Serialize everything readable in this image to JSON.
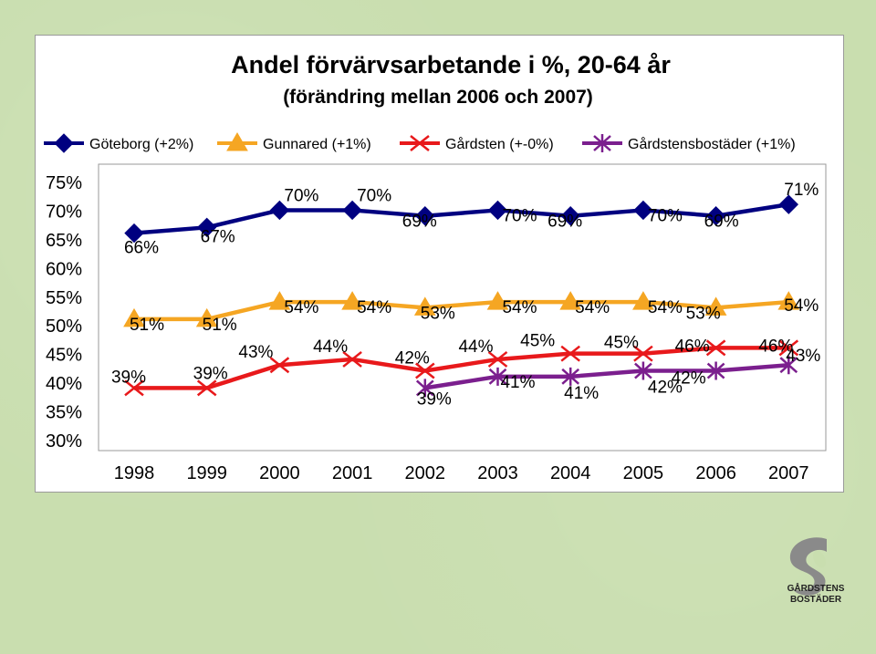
{
  "chart_data": {
    "type": "line",
    "title": "Andel förvärvsarbetande i %, 20-64 år",
    "subtitle": "(förändring mellan 2006 och 2007)",
    "xlabel": "",
    "ylabel": "",
    "categories": [
      "1998",
      "1999",
      "2000",
      "2001",
      "2002",
      "2003",
      "2004",
      "2005",
      "2006",
      "2007"
    ],
    "ylim": [
      30,
      75
    ],
    "y_ticks": [
      "30%",
      "35%",
      "40%",
      "45%",
      "50%",
      "55%",
      "60%",
      "65%",
      "70%",
      "75%"
    ],
    "grid": false,
    "legend_position": "top",
    "series": [
      {
        "name": "Göteborg (+2%)",
        "color": "#000080",
        "marker": "diamond",
        "values": [
          66,
          67,
          70,
          70,
          69,
          70,
          69,
          70,
          69,
          71
        ],
        "labels": [
          "66%",
          "67%",
          "70%",
          "70%",
          "69%",
          "70%",
          "69%",
          "70%",
          "69%",
          "71%"
        ]
      },
      {
        "name": "Gunnared (+1%)",
        "color": "#f5a623",
        "marker": "triangle",
        "values": [
          51,
          51,
          54,
          54,
          53,
          54,
          54,
          54,
          53,
          54
        ],
        "labels": [
          "51%",
          "51%",
          "54%",
          "54%",
          "53%",
          "54%",
          "54%",
          "54%",
          "53%",
          "54%"
        ]
      },
      {
        "name": "Gårdsten (+-0%)",
        "color": "#e8191b",
        "marker": "x",
        "values": [
          39,
          39,
          43,
          44,
          42,
          44,
          45,
          45,
          46,
          46
        ],
        "labels": [
          "39%",
          "39%",
          "43%",
          "44%",
          "42%",
          "44%",
          "45%",
          "45%",
          "46%",
          "46%"
        ]
      },
      {
        "name": "Gårdstensbostäder (+1%)",
        "color": "#7b1f8e",
        "marker": "asterisk",
        "values": [
          null,
          null,
          null,
          null,
          39,
          41,
          41,
          42,
          42,
          43
        ],
        "labels": [
          "",
          "",
          "",
          "",
          "39%",
          "41%",
          "41%",
          "42%",
          "42%",
          "43%"
        ]
      }
    ]
  },
  "logo": {
    "line1": "GÅRDSTENS",
    "line2": "BOSTÄDER"
  }
}
